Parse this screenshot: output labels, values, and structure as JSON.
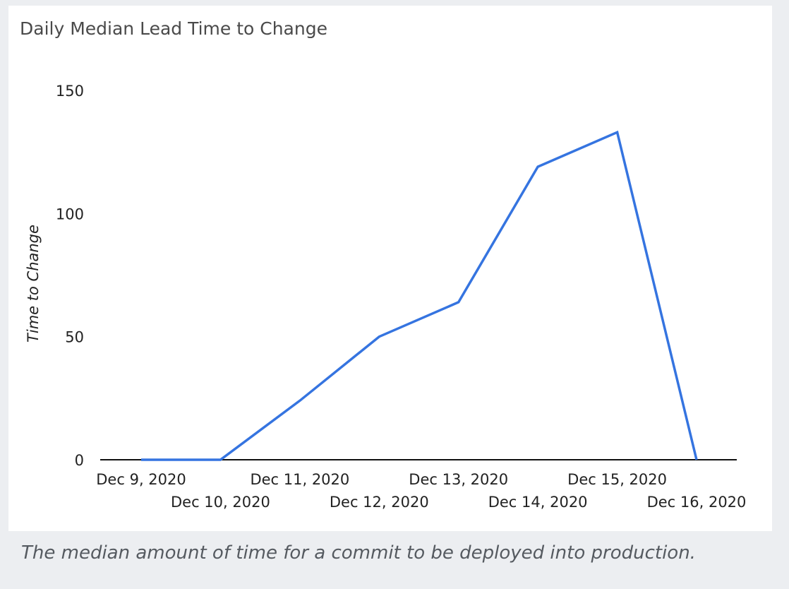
{
  "card": {
    "title": "Daily Median Lead Time to Change"
  },
  "caption": "The median amount of time for a commit to be deployed into production.",
  "colors": {
    "line": "#3574e0",
    "axis": "#111111",
    "background": "#eceef1",
    "card": "#ffffff"
  },
  "chart_data": {
    "type": "line",
    "title": "Daily Median Lead Time to Change",
    "xlabel": "",
    "ylabel": "Time to Change",
    "categories": [
      "Dec 9, 2020",
      "Dec 10, 2020",
      "Dec 11, 2020",
      "Dec 12, 2020",
      "Dec 13, 2020",
      "Dec 14, 2020",
      "Dec 15, 2020",
      "Dec 16, 2020"
    ],
    "values": [
      0,
      0,
      24,
      50,
      64,
      119,
      133,
      0
    ],
    "ylim": [
      0,
      150
    ],
    "yticks": [
      0,
      50,
      100,
      150
    ],
    "grid": false,
    "legend": "none"
  }
}
